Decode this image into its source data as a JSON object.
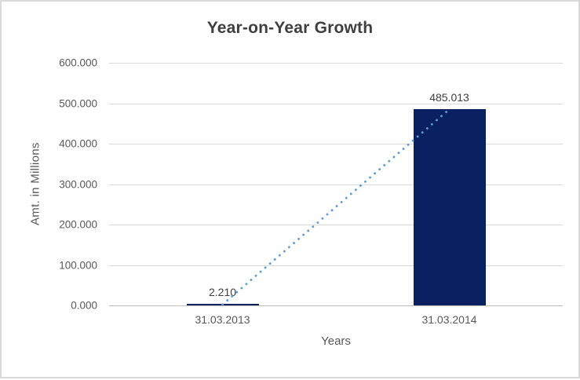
{
  "chart_data": {
    "type": "bar",
    "title": "Year-on-Year Growth",
    "xlabel": "Years",
    "ylabel": "Amt. in Millions",
    "categories": [
      "31.03.2013",
      "31.03.2014"
    ],
    "values": [
      2.21,
      485.013
    ],
    "data_labels": [
      "2.210",
      "485.013"
    ],
    "ylim": [
      0,
      600
    ],
    "ytick_step": 100,
    "ytick_labels": [
      "0.000",
      "100.000",
      "200.000",
      "300.000",
      "400.000",
      "500.000",
      "600.000"
    ],
    "grid": true,
    "legend": "none",
    "trendline": {
      "type": "linear",
      "style": "dotted",
      "points": [
        [
          0,
          2.21
        ],
        [
          1,
          485.013
        ]
      ]
    },
    "colors": {
      "bar": "#0a2161",
      "trendline": "#5b9bd5",
      "gridline": "#d9d9d9",
      "axis_line": "#bfbfbf",
      "title_text": "#3f3f3f",
      "tick_text": "#595959",
      "data_label_text": "#404040",
      "border": "#d9d9d9",
      "background": "#ffffff"
    }
  }
}
